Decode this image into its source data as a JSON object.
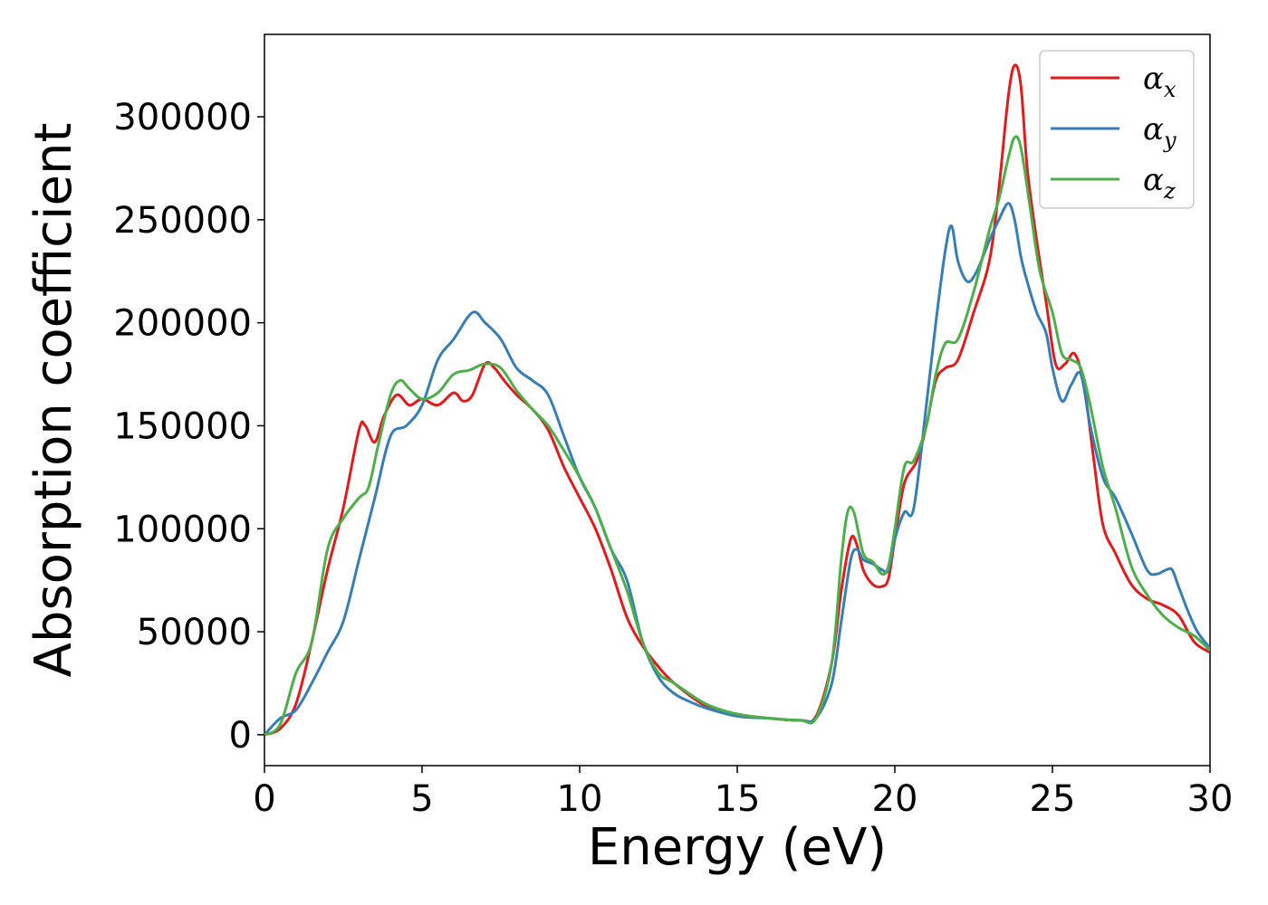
{
  "chart_data": {
    "type": "line",
    "title": "",
    "xlabel": "Energy (eV)",
    "ylabel": "Absorption coefficient",
    "xlim": [
      0,
      30
    ],
    "ylim": [
      -15000,
      340000
    ],
    "xticks": [
      0,
      5,
      10,
      15,
      20,
      25,
      30
    ],
    "yticks": [
      0,
      50000,
      100000,
      150000,
      200000,
      250000,
      300000
    ],
    "grid": false,
    "legend_position": "top-right",
    "series": [
      {
        "name": "α",
        "subscript": "x",
        "color": "#e41a1c",
        "x": [
          0,
          0.5,
          1,
          1.5,
          2,
          2.5,
          3,
          3.2,
          3.5,
          3.8,
          4.2,
          4.6,
          5,
          5.5,
          6,
          6.3,
          6.6,
          7,
          7.3,
          7.6,
          8,
          8.5,
          9,
          9.5,
          10,
          10.5,
          11,
          11.5,
          12,
          12.5,
          13,
          14,
          15,
          16,
          17,
          17.5,
          18,
          18.3,
          18.6,
          18.8,
          19,
          19.3,
          19.6,
          19.8,
          20,
          20.3,
          20.7,
          21,
          21.3,
          21.6,
          22,
          22.5,
          23,
          23.3,
          23.6,
          23.8,
          24,
          24.2,
          24.5,
          24.8,
          25.1,
          25.4,
          25.7,
          26,
          26.3,
          26.6,
          27,
          27.5,
          28,
          28.5,
          29,
          29.5,
          30
        ],
        "values": [
          0,
          3000,
          15000,
          45000,
          80000,
          110000,
          148000,
          150000,
          142000,
          155000,
          165000,
          160000,
          163000,
          160000,
          166000,
          162000,
          165000,
          180000,
          178000,
          172000,
          165000,
          158000,
          148000,
          130000,
          115000,
          100000,
          80000,
          57000,
          43000,
          33000,
          25000,
          14000,
          10000,
          8000,
          7000,
          9000,
          35000,
          70000,
          95000,
          92000,
          80000,
          73000,
          72000,
          76000,
          95000,
          122000,
          133000,
          150000,
          172000,
          178000,
          182000,
          205000,
          230000,
          265000,
          310000,
          325000,
          315000,
          275000,
          240000,
          210000,
          180000,
          180000,
          185000,
          170000,
          135000,
          102000,
          88000,
          73000,
          66000,
          63000,
          58000,
          45000,
          40000
        ]
      },
      {
        "name": "α",
        "subscript": "y",
        "color": "#377eb8",
        "x": [
          0,
          0.5,
          1,
          1.5,
          2,
          2.5,
          3,
          3.5,
          4,
          4.5,
          5,
          5.5,
          6,
          6.6,
          7,
          7.5,
          8,
          8.5,
          9,
          9.5,
          10,
          10.5,
          11,
          11.5,
          12,
          12.5,
          13,
          13.5,
          14,
          15,
          16,
          17,
          17.5,
          18,
          18.3,
          18.6,
          18.8,
          19,
          19.3,
          19.6,
          19.8,
          20,
          20.3,
          20.6,
          21,
          21.3,
          21.6,
          21.8,
          22,
          22.3,
          22.6,
          23,
          23.3,
          23.6,
          23.8,
          24,
          24.2,
          24.5,
          24.8,
          25,
          25.3,
          25.6,
          25.9,
          26.2,
          26.6,
          27,
          27.5,
          28,
          28.3,
          28.6,
          28.8,
          29,
          29.3,
          29.6,
          30
        ],
        "values": [
          0,
          8000,
          12000,
          25000,
          40000,
          55000,
          85000,
          115000,
          145000,
          150000,
          160000,
          182000,
          192000,
          205000,
          200000,
          192000,
          178000,
          172000,
          165000,
          145000,
          125000,
          110000,
          90000,
          75000,
          45000,
          28000,
          20000,
          16000,
          13000,
          9000,
          8000,
          7000,
          8000,
          25000,
          55000,
          85000,
          90000,
          85000,
          83000,
          80000,
          80000,
          95000,
          108000,
          110000,
          160000,
          200000,
          235000,
          247000,
          230000,
          220000,
          225000,
          240000,
          250000,
          258000,
          250000,
          232000,
          220000,
          205000,
          195000,
          178000,
          162000,
          170000,
          175000,
          150000,
          125000,
          115000,
          98000,
          80000,
          78000,
          80000,
          80000,
          72000,
          60000,
          50000,
          42000
        ]
      },
      {
        "name": "α",
        "subscript": "z",
        "color": "#4daf4a",
        "x": [
          0,
          0.5,
          1,
          1.5,
          2,
          2.5,
          3,
          3.3,
          3.6,
          4,
          4.3,
          4.6,
          5,
          5.5,
          6,
          6.5,
          7,
          7.5,
          8,
          8.5,
          9,
          9.5,
          10,
          10.5,
          11,
          11.5,
          12,
          12.5,
          13,
          14,
          15,
          16,
          17,
          17.5,
          18,
          18.3,
          18.5,
          18.7,
          19,
          19.3,
          19.6,
          19.8,
          20,
          20.3,
          20.6,
          21,
          21.3,
          21.6,
          22,
          22.5,
          23,
          23.3,
          23.6,
          23.8,
          24,
          24.3,
          24.6,
          25,
          25.3,
          25.6,
          25.9,
          26.2,
          26.6,
          27,
          27.5,
          28,
          28.5,
          29,
          29.5,
          30
        ],
        "values": [
          0,
          5000,
          30000,
          45000,
          90000,
          105000,
          115000,
          120000,
          140000,
          165000,
          172000,
          168000,
          163000,
          166000,
          175000,
          177000,
          180000,
          178000,
          167000,
          158000,
          150000,
          138000,
          125000,
          110000,
          90000,
          70000,
          45000,
          30000,
          25000,
          15000,
          10000,
          8000,
          7000,
          8000,
          35000,
          85000,
          108000,
          108000,
          88000,
          84000,
          78000,
          82000,
          100000,
          130000,
          133000,
          150000,
          175000,
          190000,
          192000,
          215000,
          245000,
          260000,
          280000,
          290000,
          285000,
          255000,
          225000,
          205000,
          185000,
          182000,
          178000,
          160000,
          130000,
          110000,
          82000,
          68000,
          58000,
          52000,
          48000,
          41000
        ]
      }
    ]
  }
}
